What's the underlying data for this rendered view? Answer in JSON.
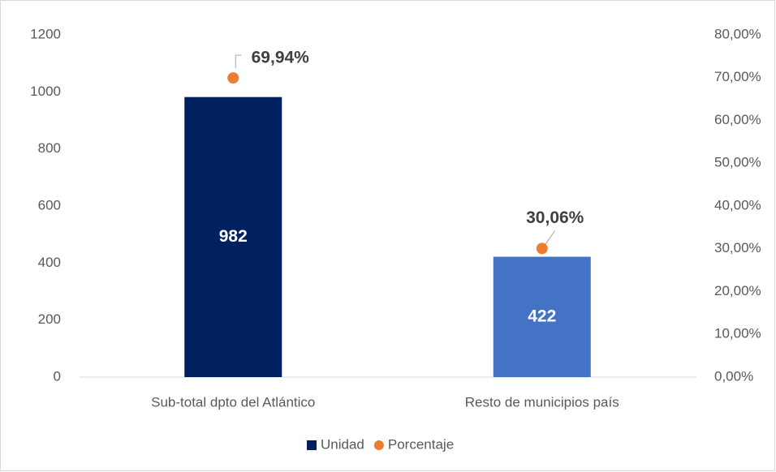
{
  "chart_data": {
    "type": "bar",
    "categories": [
      "Sub-total dpto del Atlántico",
      "Resto de municipios país"
    ],
    "series": [
      {
        "name": "Unidad",
        "color": "#002060",
        "colors": [
          "#002060",
          "#4472c4"
        ],
        "values": [
          982,
          422
        ]
      },
      {
        "name": "Porcentaje",
        "type": "scatter",
        "axis": "y2",
        "color": "#ed7d31",
        "values": [
          69.94,
          30.06
        ],
        "value_labels": [
          "69,94%",
          "30,06%"
        ]
      }
    ],
    "ylim": [
      0,
      1200
    ],
    "yticks": [
      0,
      200,
      400,
      600,
      800,
      1000,
      1200
    ],
    "y2lim": [
      0,
      80
    ],
    "y2ticks": [
      {
        "value": 0,
        "label": "0,00%"
      },
      {
        "value": 10,
        "label": "10,00%"
      },
      {
        "value": 20,
        "label": "20,00%"
      },
      {
        "value": 30,
        "label": "30,00%"
      },
      {
        "value": 40,
        "label": "40,00%"
      },
      {
        "value": 50,
        "label": "50,00%"
      },
      {
        "value": 60,
        "label": "60,00%"
      },
      {
        "value": 70,
        "label": "70,00%"
      },
      {
        "value": 80,
        "label": "80,00%"
      }
    ],
    "grid": false,
    "legend": "bottom"
  }
}
